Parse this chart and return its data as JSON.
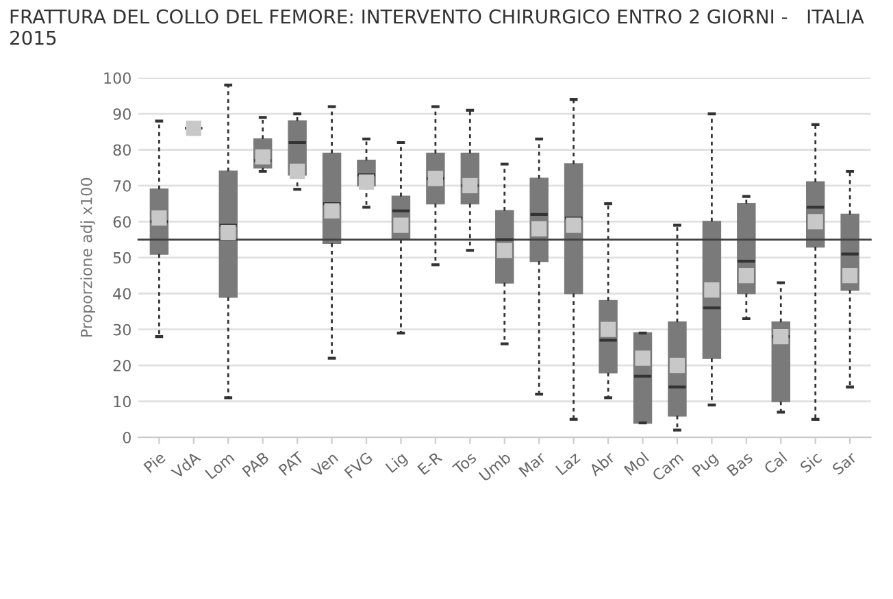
{
  "chart_data": {
    "type": "box",
    "title": "FRATTURA DEL COLLO DEL FEMORE: INTERVENTO CHIRURGICO ENTRO 2 GIORNI -   ITALIA 2015",
    "ylabel": "Proporzione adj x100",
    "categories": [
      "Pie",
      "VdA",
      "Lom",
      "PAB",
      "PAT",
      "Ven",
      "FVG",
      "Lig",
      "E-R",
      "Tos",
      "Umb",
      "Mar",
      "Laz",
      "Abr",
      "Mol",
      "Cam",
      "Pug",
      "Bas",
      "Cal",
      "Sic",
      "Sar"
    ],
    "boxes": [
      {
        "low": 28,
        "q1": 51,
        "median": 60,
        "q3": 69,
        "high": 88,
        "mean": 61
      },
      {
        "low": 86,
        "q1": 86,
        "median": 86,
        "q3": 86,
        "high": 86,
        "mean": 86
      },
      {
        "low": 11,
        "q1": 39,
        "median": 59,
        "q3": 74,
        "high": 98,
        "mean": 57
      },
      {
        "low": 74,
        "q1": 75,
        "median": 77,
        "q3": 83,
        "high": 89,
        "mean": 78
      },
      {
        "low": 69,
        "q1": 73,
        "median": 82,
        "q3": 88,
        "high": 90,
        "mean": 74
      },
      {
        "low": 22,
        "q1": 54,
        "median": 65,
        "q3": 79,
        "high": 92,
        "mean": 63
      },
      {
        "low": 64,
        "q1": 70,
        "median": 73,
        "q3": 77,
        "high": 83,
        "mean": 71
      },
      {
        "low": 29,
        "q1": 55,
        "median": 63,
        "q3": 67,
        "high": 82,
        "mean": 59
      },
      {
        "low": 48,
        "q1": 65,
        "median": 72,
        "q3": 79,
        "high": 92,
        "mean": 72
      },
      {
        "low": 52,
        "q1": 65,
        "median": 70,
        "q3": 79,
        "high": 91,
        "mean": 70
      },
      {
        "low": 26,
        "q1": 43,
        "median": 55,
        "q3": 63,
        "high": 76,
        "mean": 52
      },
      {
        "low": 12,
        "q1": 49,
        "median": 62,
        "q3": 72,
        "high": 83,
        "mean": 58
      },
      {
        "low": 5,
        "q1": 40,
        "median": 61,
        "q3": 76,
        "high": 94,
        "mean": 59
      },
      {
        "low": 11,
        "q1": 18,
        "median": 27,
        "q3": 38,
        "high": 65,
        "mean": 30
      },
      {
        "low": 4,
        "q1": 4,
        "median": 17,
        "q3": 29,
        "high": 29,
        "mean": 22
      },
      {
        "low": 2,
        "q1": 6,
        "median": 14,
        "q3": 32,
        "high": 59,
        "mean": 20
      },
      {
        "low": 9,
        "q1": 22,
        "median": 36,
        "q3": 60,
        "high": 90,
        "mean": 41
      },
      {
        "low": 33,
        "q1": 40,
        "median": 49,
        "q3": 65,
        "high": 67,
        "mean": 45
      },
      {
        "low": 7,
        "q1": 10,
        "median": 28,
        "q3": 32,
        "high": 43,
        "mean": 28
      },
      {
        "low": 5,
        "q1": 53,
        "median": 64,
        "q3": 71,
        "high": 87,
        "mean": 60
      },
      {
        "low": 14,
        "q1": 41,
        "median": 51,
        "q3": 62,
        "high": 74,
        "mean": 45
      }
    ],
    "color": "#7a7a7a",
    "ylim": [
      0,
      100
    ],
    "yticks": [
      0,
      10,
      20,
      30,
      40,
      50,
      60,
      70,
      80,
      90,
      100
    ],
    "ref_lines": [
      {
        "axis": "y",
        "value": 55,
        "color": "#404040"
      }
    ],
    "grid": "y"
  }
}
